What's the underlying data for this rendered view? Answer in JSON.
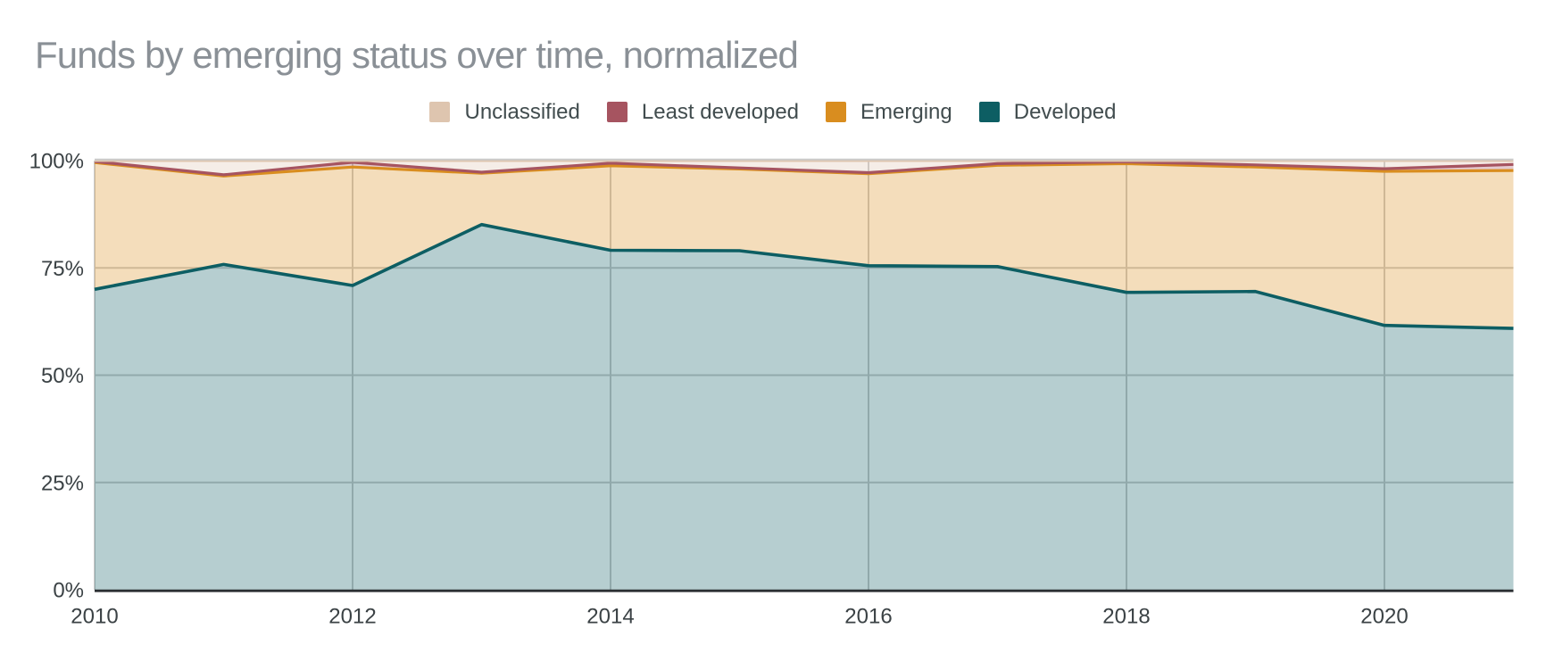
{
  "chart_data": {
    "type": "area",
    "stacked": true,
    "normalized": true,
    "title": "Funds by emerging status over time, normalized",
    "x_label": "",
    "y_label": "",
    "x": [
      2010,
      2011,
      2012,
      2013,
      2014,
      2015,
      2016,
      2017,
      2018,
      2019,
      2020,
      2021
    ],
    "series": [
      {
        "name": "Developed",
        "color": "#0d5e63",
        "fill_opacity": 0.3,
        "values": [
          70.0,
          75.8,
          70.9,
          85.1,
          79.1,
          79.0,
          75.5,
          75.3,
          69.3,
          69.5,
          61.6,
          60.9
        ]
      },
      {
        "name": "Emerging",
        "color": "#d98d1f",
        "fill_opacity": 0.3,
        "values": [
          29.55,
          20.6,
          27.6,
          11.95,
          19.7,
          19.05,
          21.45,
          23.6,
          30.0,
          29.0,
          35.9,
          36.8
        ]
      },
      {
        "name": "Least developed",
        "color": "#a65460",
        "fill_opacity": 0.3,
        "values": [
          0.25,
          0.3,
          1.1,
          0.25,
          0.6,
          0.25,
          0.25,
          0.4,
          0.4,
          0.5,
          0.6,
          1.4
        ]
      },
      {
        "name": "Unclassified",
        "color": "#dec5af",
        "fill_opacity": 0.3,
        "values": [
          0.2,
          3.3,
          0.4,
          2.7,
          0.6,
          1.7,
          2.8,
          0.7,
          0.3,
          1.0,
          1.9,
          0.9
        ]
      }
    ],
    "legend": [
      {
        "label": "Unclassified",
        "color": "#dec5af"
      },
      {
        "label": "Least developed",
        "color": "#a65460"
      },
      {
        "label": "Emerging",
        "color": "#d98d1f"
      },
      {
        "label": "Developed",
        "color": "#0d5e63"
      }
    ],
    "legend_position": "top-center",
    "x_ticks": [
      "2010",
      "2012",
      "2014",
      "2016",
      "2018",
      "2020"
    ],
    "x_tick_years": [
      2010,
      2012,
      2014,
      2016,
      2018,
      2020
    ],
    "y_ticks": [
      "0%",
      "25%",
      "50%",
      "75%",
      "100%"
    ],
    "y_tick_values": [
      0,
      25,
      50,
      75,
      100
    ],
    "ylim": [
      0,
      100
    ],
    "grid": true,
    "colors": {
      "title_text": "#8a9096",
      "legend_text": "#414c4e",
      "axis_text": "#3b4245",
      "gridline": "#cbcbcb",
      "baseline": "#2a2f32",
      "background": "#ffffff"
    }
  }
}
